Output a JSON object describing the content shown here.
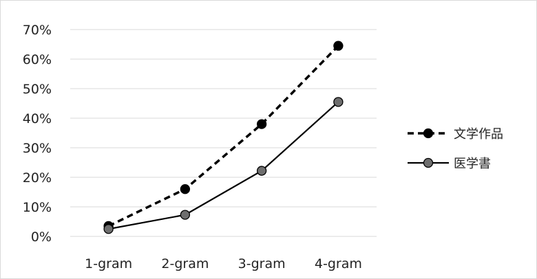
{
  "chart_data": {
    "type": "line",
    "title": "",
    "xlabel": "",
    "ylabel": "",
    "categories": [
      "1-gram",
      "2-gram",
      "3-gram",
      "4-gram"
    ],
    "y_ticks": [
      "0%",
      "10%",
      "20%",
      "30%",
      "40%",
      "50%",
      "60%",
      "70%"
    ],
    "ylim": [
      0,
      70
    ],
    "grid": true,
    "legend_position": "right",
    "series": [
      {
        "name": "文学作品",
        "values": [
          3.5,
          16,
          38,
          64.5
        ],
        "line_style": "dashed",
        "line_color": "#000000",
        "marker_fill": "#000000"
      },
      {
        "name": "医学書",
        "values": [
          2.5,
          7.3,
          22.2,
          45.5
        ],
        "line_style": "solid",
        "line_color": "#000000",
        "marker_fill": "#6e6e6e"
      }
    ]
  }
}
